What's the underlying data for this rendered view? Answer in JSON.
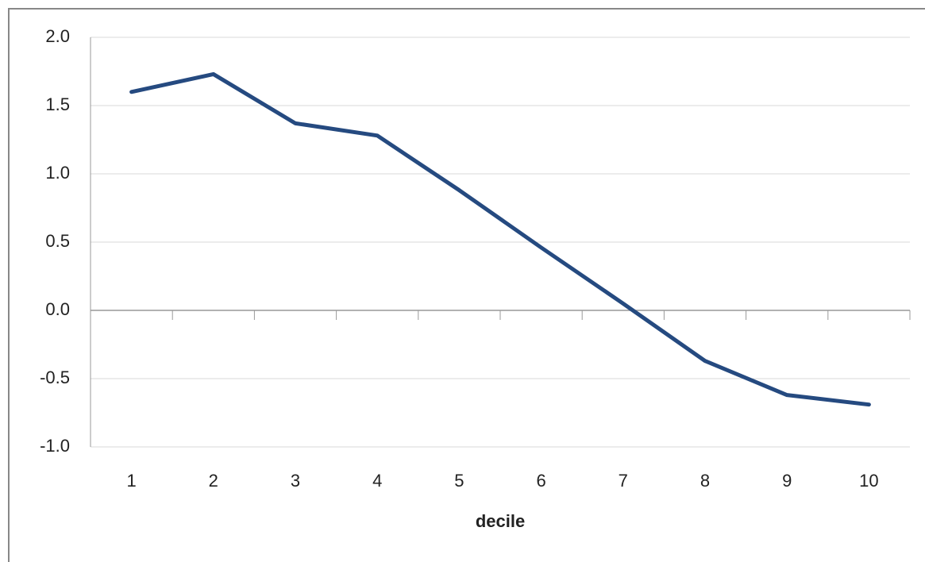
{
  "chart_data": {
    "type": "line",
    "x_label": "decile",
    "categories": [
      "1",
      "2",
      "3",
      "4",
      "5",
      "6",
      "7",
      "8",
      "9",
      "10"
    ],
    "series": [
      {
        "name": "decile",
        "color": "#254a80",
        "values": [
          1.6,
          1.73,
          1.37,
          1.28,
          0.88,
          0.46,
          0.05,
          -0.37,
          -0.62,
          -0.69
        ]
      }
    ],
    "ylim": [
      -1.0,
      2.0
    ],
    "yticks": [
      {
        "value": -1.0,
        "label": "-1.0"
      },
      {
        "value": -0.5,
        "label": "-0.5"
      },
      {
        "value": 0,
        "label": "0.0"
      },
      {
        "value": 0.5,
        "label": "0.5"
      },
      {
        "value": 1.0,
        "label": "1.0"
      },
      {
        "value": 1.5,
        "label": "1.5"
      },
      {
        "value": 2.0,
        "label": "2.0"
      }
    ],
    "grid": true
  }
}
